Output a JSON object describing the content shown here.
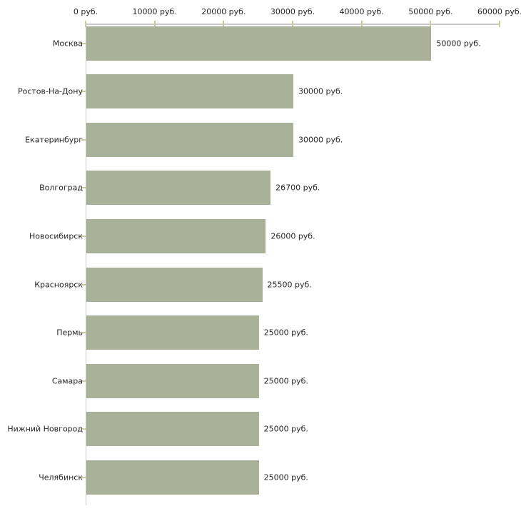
{
  "chart_data": {
    "type": "bar",
    "orientation": "horizontal",
    "title": "",
    "xlabel": "",
    "ylabel": "",
    "categories": [
      "Москва",
      "Ростов-На-Дону",
      "Екатеринбург",
      "Волгоград",
      "Новосибирск",
      "Красноярск",
      "Пермь",
      "Самара",
      "Нижний Новгород",
      "Челябинск"
    ],
    "values": [
      50000,
      30000,
      30000,
      26700,
      26000,
      25500,
      25000,
      25000,
      25000,
      25000
    ],
    "value_labels": [
      "50000 руб.",
      "30000 руб.",
      "30000 руб.",
      "26700 руб.",
      "26000 руб.",
      "25500 руб.",
      "25000 руб.",
      "25000 руб.",
      "25000 руб.",
      "25000 руб."
    ],
    "xlim": [
      0,
      60000
    ],
    "x_ticks": [
      0,
      10000,
      20000,
      30000,
      40000,
      50000,
      60000
    ],
    "x_tick_labels": [
      "0 руб.",
      "10000 руб.",
      "20000 руб.",
      "30000 руб.",
      "40000 руб.",
      "50000 руб.",
      "60000 руб."
    ],
    "grid": false,
    "legend": false,
    "colors": {
      "bar": "#aab199",
      "axis": "#c8c8c8",
      "tick": "#cccc99",
      "text": "#262626",
      "background": "#ffffff"
    }
  }
}
